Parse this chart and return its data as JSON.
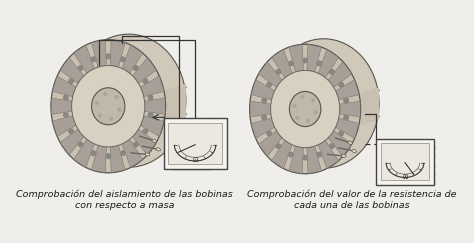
{
  "background_color": "#f0eeea",
  "left_caption_line1": "Comprobación del aislamiento de las bobinas",
  "left_caption_line2": "con respecto a masa",
  "right_caption_line1": "Comprobación del valor de la resistencia de",
  "right_caption_line2": "cada una de las bobinas",
  "caption_fontsize": 6.8,
  "caption_color": "#1a1a1a",
  "fig_width": 4.74,
  "fig_height": 2.43,
  "dpi": 100,
  "stator_color_outer": "#b0a898",
  "stator_color_slot": "#9aaa9a",
  "stator_color_wire": "#888880",
  "meter_bg": "#f5f3ee",
  "meter_border": "#444444",
  "line_color": "#333333"
}
